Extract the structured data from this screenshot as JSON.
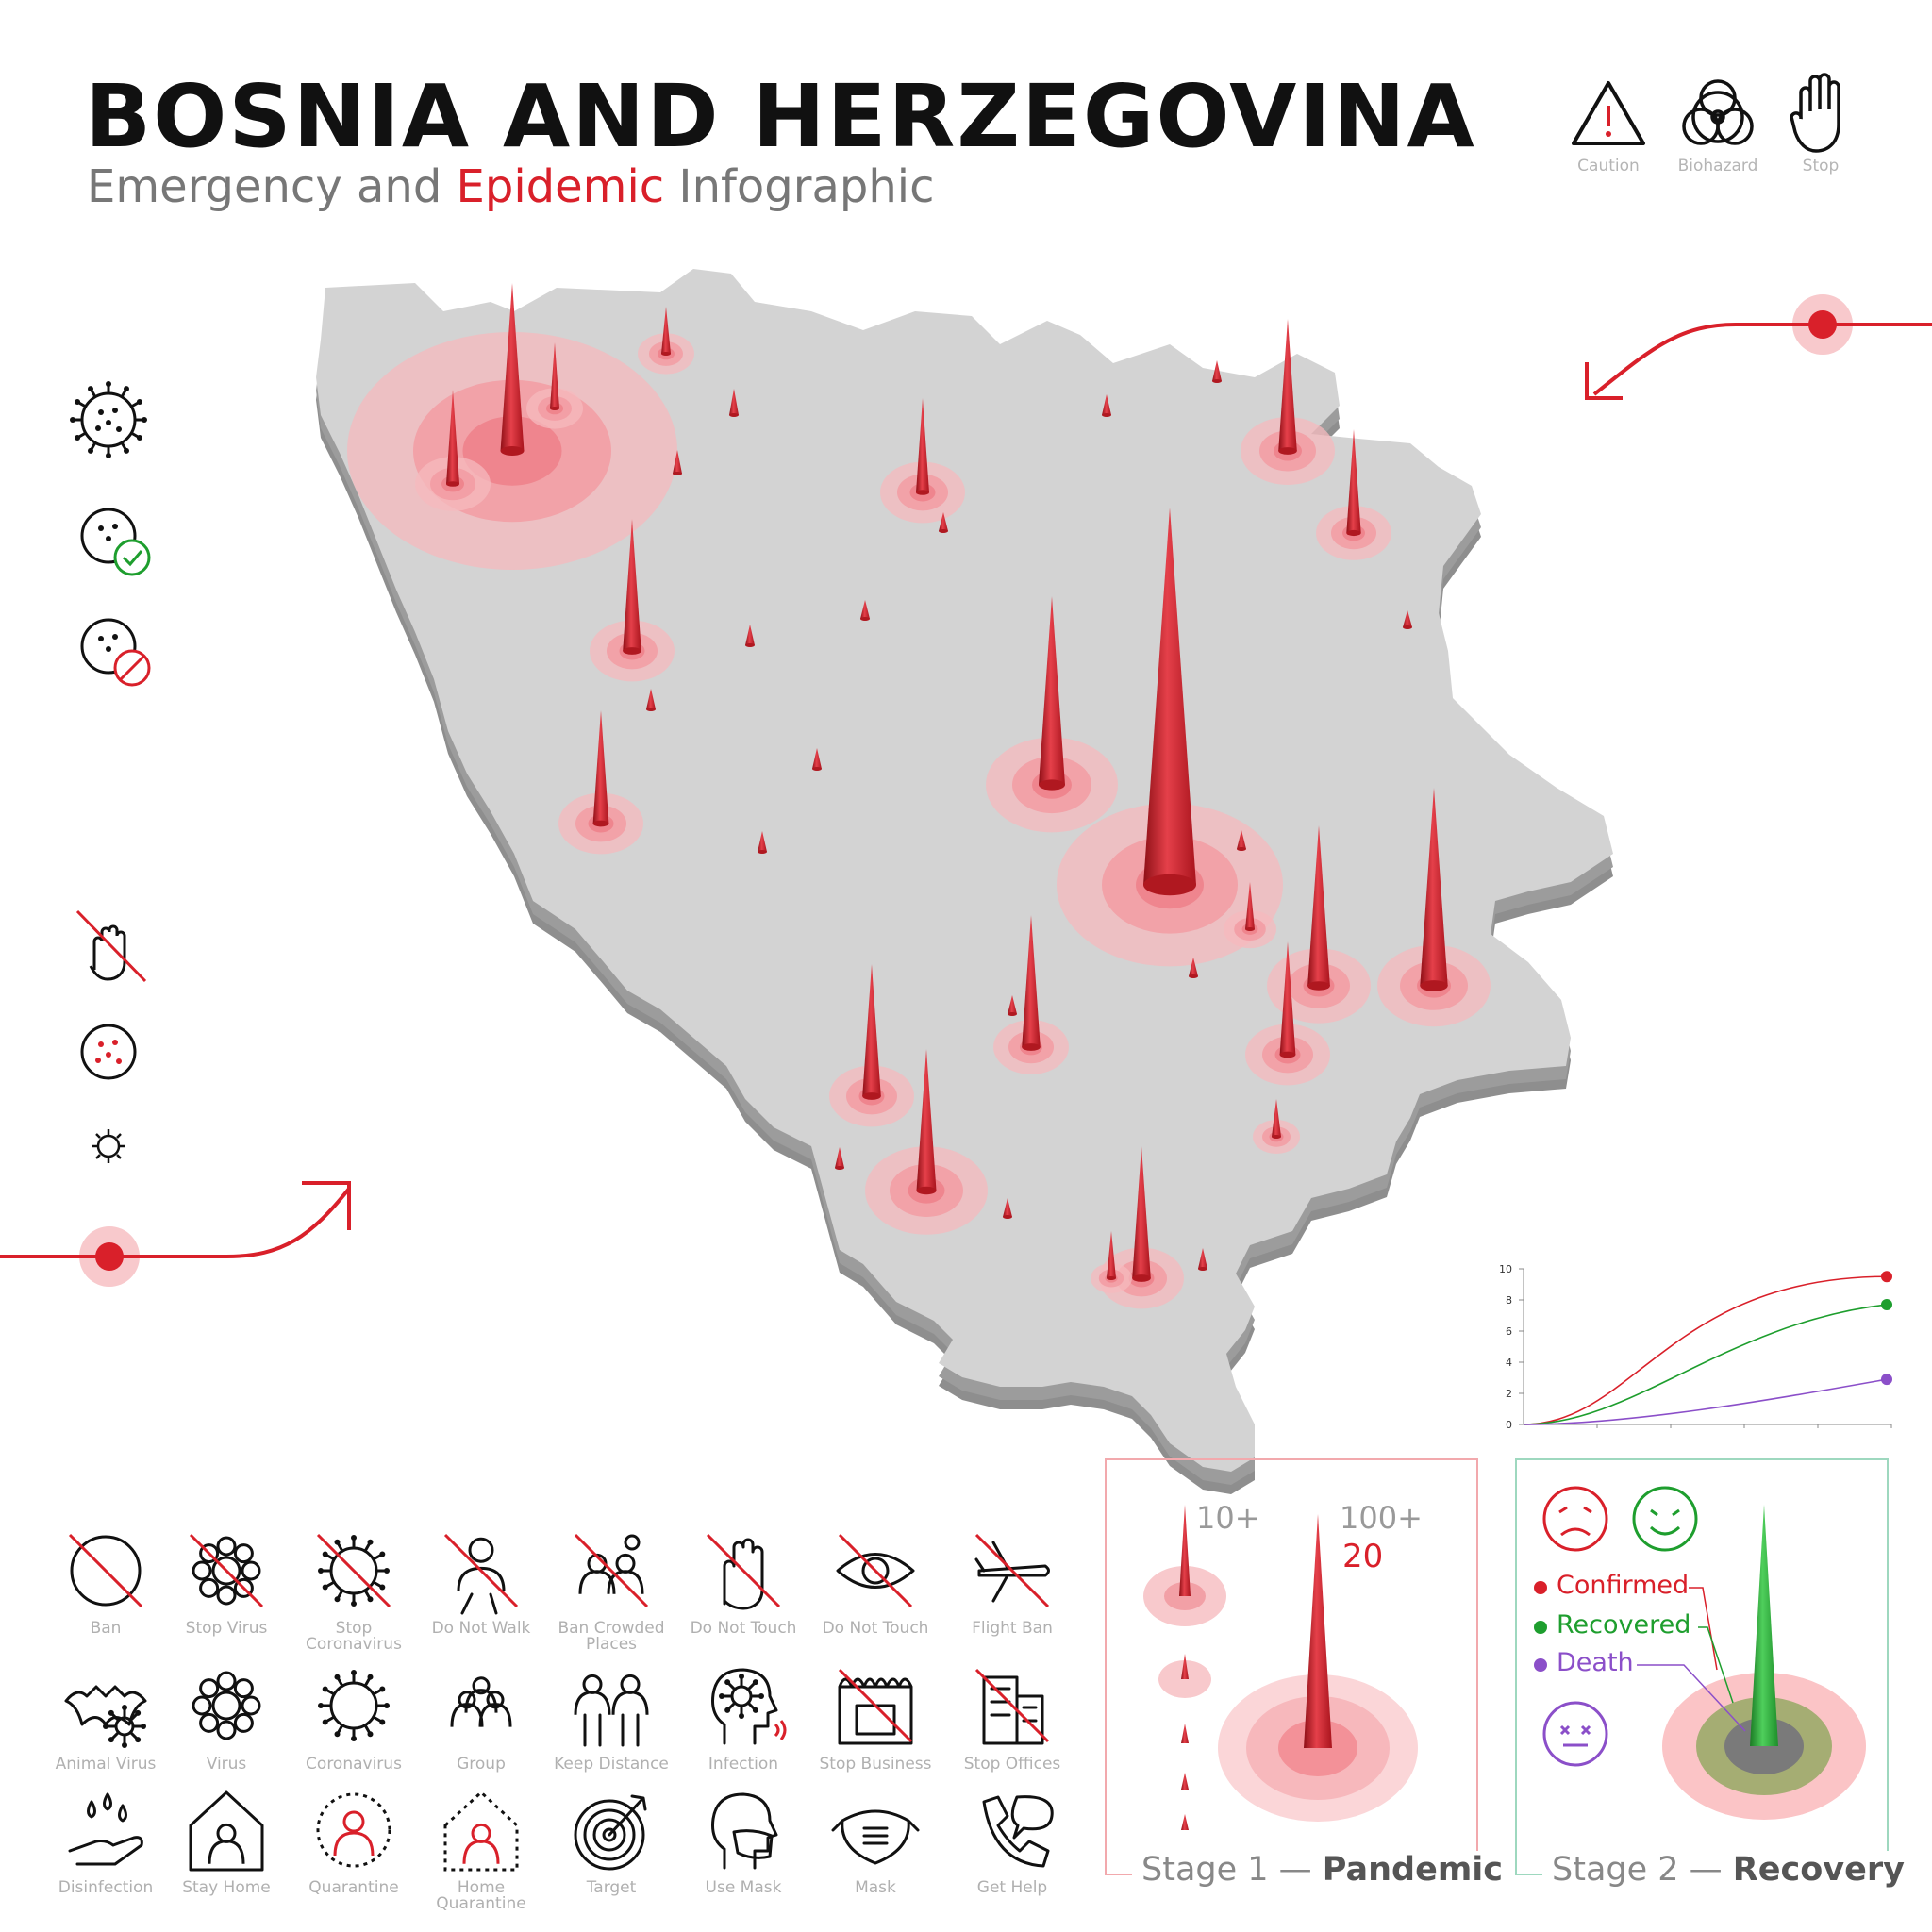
{
  "header": {
    "title": "BOSNIA AND HERZEGOVINA",
    "subtitle_pre": "Emergency and ",
    "subtitle_highlight": "Epidemic",
    "subtitle_post": " Infographic"
  },
  "top_icons": [
    {
      "label": "Caution",
      "icon": "caution-triangle-icon"
    },
    {
      "label": "Biohazard",
      "icon": "biohazard-icon"
    },
    {
      "label": "Stop",
      "icon": "stop-hand-icon"
    }
  ],
  "colors": {
    "accent": "#d9202a",
    "map": "#d3d3d3",
    "map_side": "#8e8e8e",
    "recovered": "#1e9e2e",
    "death": "#8b4fc9"
  },
  "mini_chart": {
    "type": "line",
    "ylim": [
      0,
      10
    ],
    "y_ticks": [
      "0",
      "2",
      "4",
      "6",
      "8",
      "10"
    ],
    "series": [
      {
        "color": "#d9202a",
        "end": 9.5
      },
      {
        "color": "#1e9e2e",
        "end": 7.7
      },
      {
        "color": "#8b4fc9",
        "end": 2.9
      }
    ]
  },
  "stage1": {
    "label_a": "Stage 1 — ",
    "label_b": "Pandemic",
    "small_count": "10+",
    "big_count": "100+",
    "big_count_red": "20"
  },
  "stage2": {
    "label_a": "Stage 2 — ",
    "label_b": "Recovery",
    "legend": [
      "Confirmed",
      "Recovered",
      "Death"
    ]
  },
  "icon_grid": [
    {
      "label": "Ban",
      "icon": "ban-icon"
    },
    {
      "label": "Stop Virus",
      "icon": "stop-virus-icon"
    },
    {
      "label": "Stop Coronavirus",
      "icon": "stop-coronavirus-icon"
    },
    {
      "label": "Do Not Walk",
      "icon": "do-not-walk-icon"
    },
    {
      "label": "Ban Crowded Places",
      "icon": "ban-crowded-places-icon"
    },
    {
      "label": "Do Not Touch",
      "icon": "do-not-touch-icon"
    },
    {
      "label": "Do Not Touch",
      "icon": "do-not-touch-eye-icon"
    },
    {
      "label": "Flight Ban",
      "icon": "flight-ban-icon"
    },
    {
      "label": "Animal Virus",
      "icon": "animal-virus-icon"
    },
    {
      "label": "Virus",
      "icon": "virus-icon"
    },
    {
      "label": "Coronavirus",
      "icon": "coronavirus-icon"
    },
    {
      "label": "Group",
      "icon": "group-icon"
    },
    {
      "label": "Keep Distance",
      "icon": "keep-distance-icon"
    },
    {
      "label": "Infection",
      "icon": "infection-icon"
    },
    {
      "label": "Stop Business",
      "icon": "stop-business-icon"
    },
    {
      "label": "Stop Offices",
      "icon": "stop-offices-icon"
    },
    {
      "label": "Disinfection",
      "icon": "disinfection-icon"
    },
    {
      "label": "Stay Home",
      "icon": "stay-home-icon"
    },
    {
      "label": "Quarantine",
      "icon": "quarantine-icon"
    },
    {
      "label": "Home Quarantine",
      "icon": "home-quarantine-icon"
    },
    {
      "label": "Target",
      "icon": "target-icon"
    },
    {
      "label": "Use Mask",
      "icon": "use-mask-icon"
    },
    {
      "label": "Mask",
      "icon": "mask-icon"
    },
    {
      "label": "Get Help",
      "icon": "get-help-icon"
    }
  ]
}
